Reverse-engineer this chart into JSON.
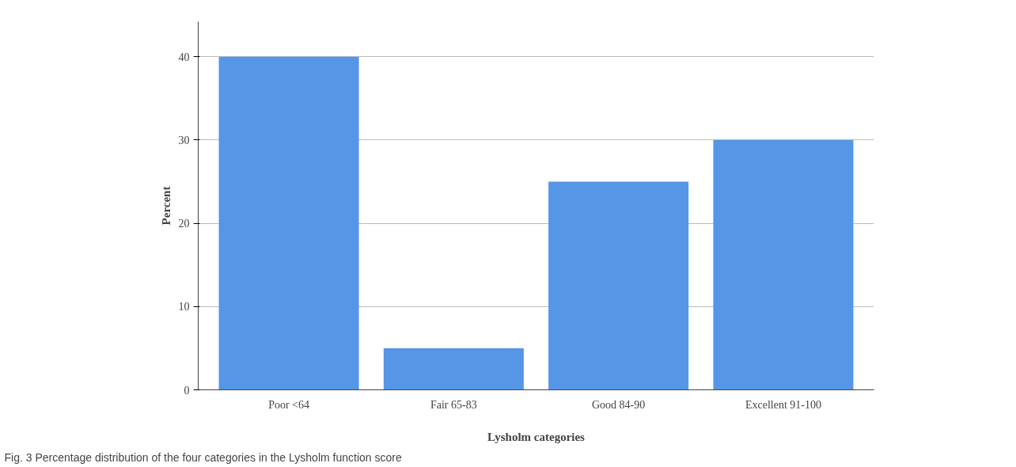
{
  "chart_data": {
    "type": "bar",
    "xlabel": "Lysholm categories",
    "ylabel": "Percent",
    "categories": [
      "Poor <64",
      "Fair 65-83",
      "Good 84-90",
      "Excellent 91-100"
    ],
    "values": [
      40,
      5,
      25,
      30
    ],
    "color": "#5596e6",
    "ylim": [
      0,
      44.2
    ],
    "yticks": [
      0,
      10,
      20,
      30,
      40
    ],
    "grid": "y",
    "annotations": [
      "Fig. 3  Percentage distribution of the four categories in the Lysholm function score"
    ]
  }
}
